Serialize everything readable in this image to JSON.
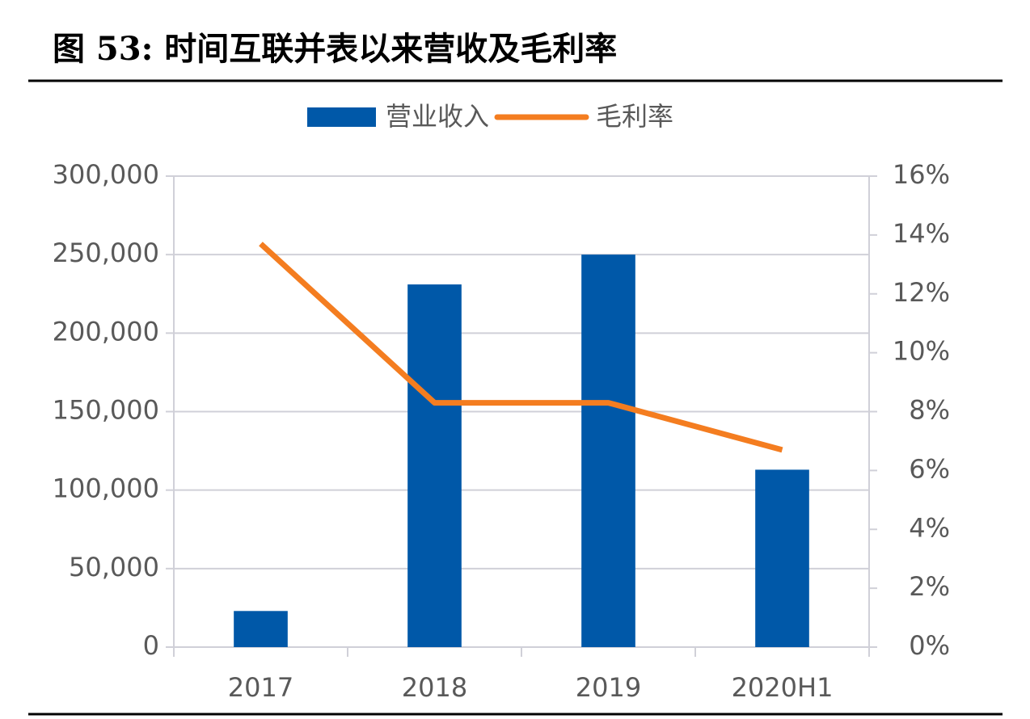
{
  "chart_data": {
    "type": "bar_line",
    "title": "图 53: 时间互联并表以来营收及毛利率",
    "categories": [
      "2017",
      "2018",
      "2019",
      "2020H1"
    ],
    "series": [
      {
        "name": "营业收入",
        "type": "bar",
        "color": "#0058a8",
        "values": [
          23000,
          231000,
          250000,
          113000
        ]
      },
      {
        "name": "毛利率",
        "type": "line",
        "axis": "y2",
        "color": "#f47d20",
        "values": [
          13.7,
          8.3,
          8.3,
          6.7
        ]
      }
    ],
    "ylim": [
      0,
      300000
    ],
    "yticks": [
      0,
      {
        "value": 50000,
        "label": "50,000"
      },
      {
        "value": 100000,
        "label": "100,000"
      },
      {
        "value": 150000,
        "label": "150,000"
      },
      {
        "value": 200000,
        "label": "200,000"
      },
      {
        "value": 250000,
        "label": "250,000"
      },
      {
        "value": 300000,
        "label": "300,000"
      }
    ],
    "y2lim": [
      0,
      16
    ],
    "y2ticks": [
      {
        "value": 0,
        "label": "0%"
      },
      {
        "value": 2,
        "label": "2%"
      },
      {
        "value": 4,
        "label": "4%"
      },
      {
        "value": 6,
        "label": "6%"
      },
      {
        "value": 8,
        "label": "8%"
      },
      {
        "value": 10,
        "label": "10%"
      },
      {
        "value": 12,
        "label": "12%"
      },
      {
        "value": 14,
        "label": "14%"
      },
      {
        "value": 16,
        "label": "16%"
      }
    ],
    "grid": true,
    "legend": "top"
  }
}
